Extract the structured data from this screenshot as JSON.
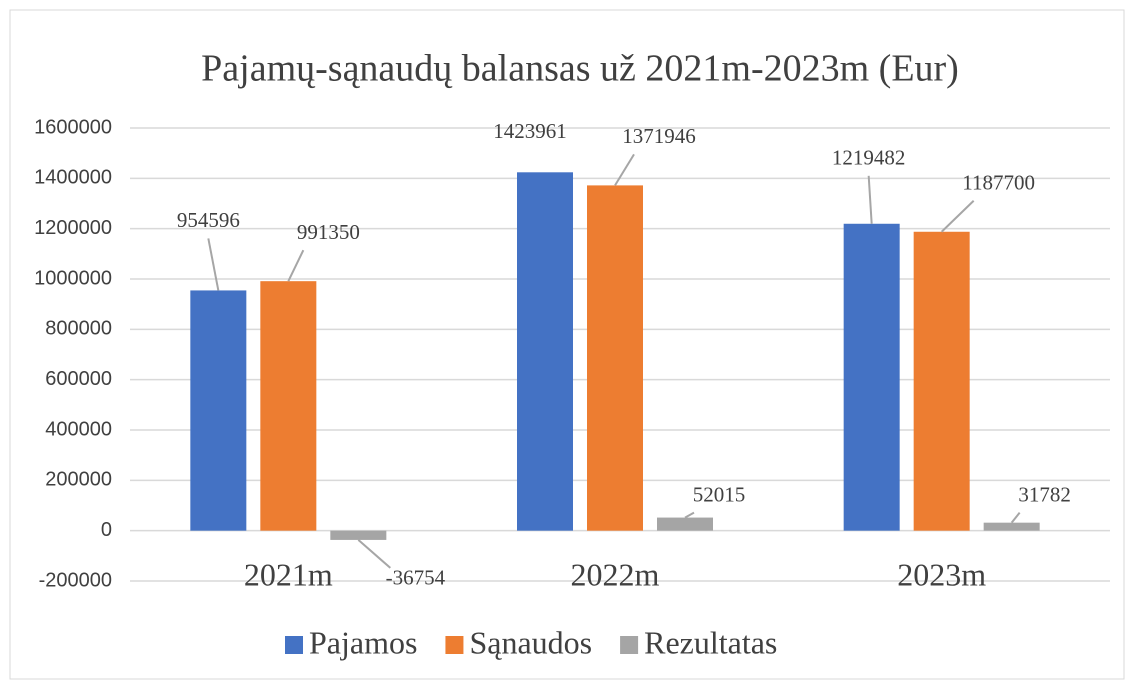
{
  "chart_data": {
    "type": "bar",
    "title": "Pajamų-sąnaudų  balansas už 2021m-2023m (Eur)",
    "categories": [
      "2021m",
      "2022m",
      "2023m"
    ],
    "series": [
      {
        "name": "Pajamos",
        "color": "#4472c4",
        "values": [
          954596,
          1423961,
          1219482
        ]
      },
      {
        "name": "Sąnaudos",
        "color": "#ed7d31",
        "values": [
          991350,
          1371946,
          1187700
        ]
      },
      {
        "name": "Rezultatas",
        "color": "#a5a5a5",
        "values": [
          -36754,
          52015,
          31782
        ]
      }
    ],
    "ylim": [
      -200000,
      1600000
    ],
    "yticks": [
      -200000,
      0,
      200000,
      400000,
      600000,
      800000,
      1000000,
      1200000,
      1400000,
      1600000
    ],
    "grid": true,
    "legend": "bottom"
  }
}
